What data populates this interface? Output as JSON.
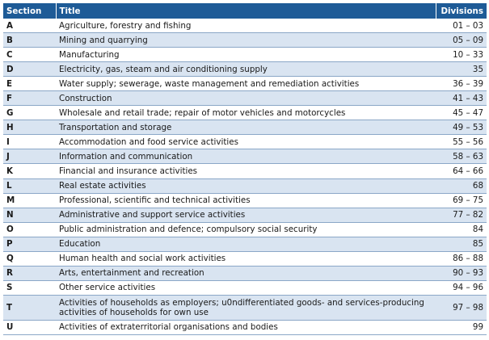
{
  "headers": {
    "section": "Section",
    "title": "Title",
    "divisions": "Divisions"
  },
  "rows": [
    {
      "section": "A",
      "title": "Agriculture, forestry and fishing",
      "divisions": "01 – 03"
    },
    {
      "section": "B",
      "title": "Mining and quarrying",
      "divisions": "05 – 09"
    },
    {
      "section": "C",
      "title": "Manufacturing",
      "divisions": "10 – 33"
    },
    {
      "section": "D",
      "title": "Electricity, gas, steam and air conditioning supply",
      "divisions": "35"
    },
    {
      "section": "E",
      "title": "Water supply; sewerage, waste management and remediation activities",
      "divisions": "36 – 39"
    },
    {
      "section": "F",
      "title": "Construction",
      "divisions": "41 – 43"
    },
    {
      "section": "G",
      "title": "Wholesale and retail trade; repair of motor vehicles and motorcycles",
      "divisions": "45 – 47"
    },
    {
      "section": "H",
      "title": "Transportation and storage",
      "divisions": "49 – 53"
    },
    {
      "section": "I",
      "title": "Accommodation and food service activities",
      "divisions": "55 – 56"
    },
    {
      "section": "J",
      "title": "Information and communication",
      "divisions": "58 – 63"
    },
    {
      "section": "K",
      "title": "Financial and insurance activities",
      "divisions": "64 – 66"
    },
    {
      "section": "L",
      "title": "Real estate activities",
      "divisions": "68"
    },
    {
      "section": "M",
      "title": "Professional, scientific and technical activities",
      "divisions": "69 – 75"
    },
    {
      "section": "N",
      "title": "Administrative and support service activities",
      "divisions": "77 – 82"
    },
    {
      "section": "O",
      "title": "Public administration and defence; compulsory social security",
      "divisions": "84"
    },
    {
      "section": "P",
      "title": "Education",
      "divisions": "85"
    },
    {
      "section": "Q",
      "title": "Human health and social work activities",
      "divisions": "86 – 88"
    },
    {
      "section": "R",
      "title": "Arts, entertainment and recreation",
      "divisions": "90 – 93"
    },
    {
      "section": "S",
      "title": "Other service activities",
      "divisions": "94 – 96"
    },
    {
      "section": "T",
      "title": "Activities of households as employers; u0ndifferentiated goods- and services-producing activities of households for own use",
      "divisions": "97 – 98"
    },
    {
      "section": "U",
      "title": "Activities of extraterritorial organisations and bodies",
      "divisions": "99"
    }
  ]
}
